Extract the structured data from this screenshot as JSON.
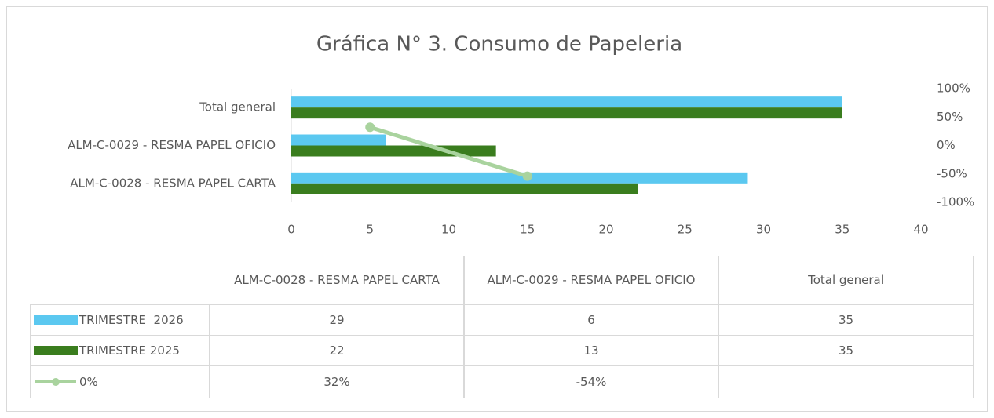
{
  "chart_data": {
    "type": "bar",
    "orientation": "horizontal",
    "title": "Gráfica N° 3. Consumo de Papeleria",
    "categories": [
      "ALM-C-0028 - RESMA PAPEL CARTA",
      "ALM-C-0029 - RESMA PAPEL OFICIO",
      "Total general"
    ],
    "series": [
      {
        "name": "TRIMESTRE  2026",
        "color": "#5bc8f0",
        "values": [
          29,
          6,
          35
        ]
      },
      {
        "name": "TRIMESTRE 2025",
        "color": "#3a7d1e",
        "values": [
          22,
          13,
          35
        ]
      },
      {
        "name": "0%",
        "type": "line",
        "axis": "y2",
        "color": "#a9d39e",
        "values": [
          32,
          -54,
          null
        ],
        "value_labels": [
          "32%",
          "-54%",
          null
        ]
      }
    ],
    "xlim": [
      0,
      40
    ],
    "xticks": [
      0,
      5,
      10,
      15,
      20,
      25,
      30,
      35,
      40
    ],
    "y2lim": [
      -100,
      100
    ],
    "y2ticks": [
      {
        "value": -100,
        "label": "-100%"
      },
      {
        "value": -50,
        "label": "-50%"
      },
      {
        "value": 0,
        "label": "0%"
      },
      {
        "value": 50,
        "label": "50%"
      },
      {
        "value": 100,
        "label": "100%"
      }
    ],
    "data_table": true
  }
}
